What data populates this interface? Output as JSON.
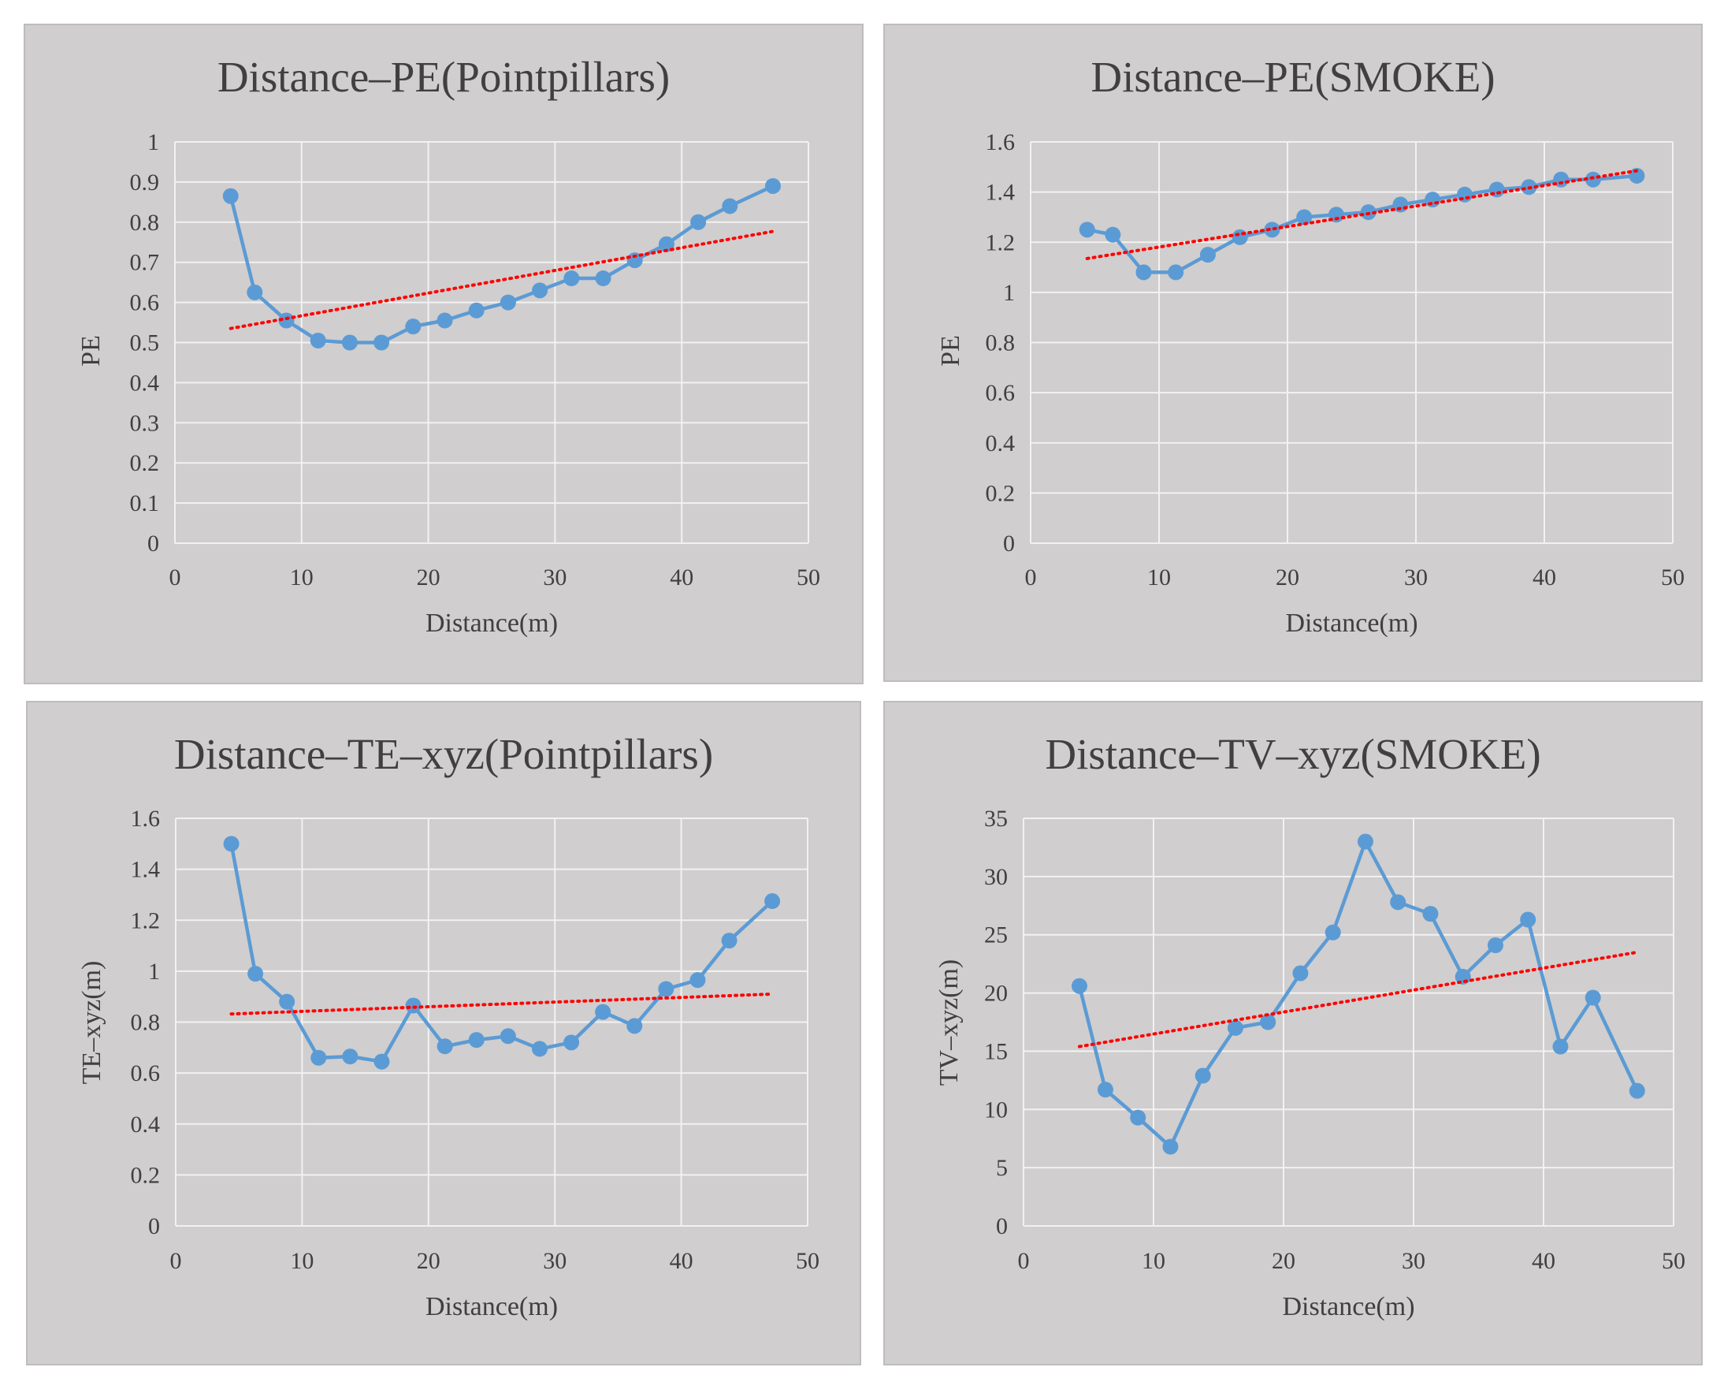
{
  "charts": [
    {
      "id": "p0",
      "type": "line",
      "title": "Distance–PE(Pointpillars)",
      "xlabel": "Distance(m)",
      "ylabel": "PE",
      "xlim": [
        0,
        50
      ],
      "ylim": [
        0,
        1
      ],
      "xticks": [
        0,
        10,
        20,
        30,
        40,
        50
      ],
      "yticks": [
        0,
        0.1,
        0.2,
        0.3,
        0.4,
        0.5,
        0.6,
        0.7,
        0.8,
        0.9,
        1
      ],
      "grid": true,
      "series": [
        {
          "name": "PE",
          "color": "#5b9bd5",
          "x": [
            4.4,
            6.3,
            8.8,
            11.3,
            13.8,
            16.3,
            18.8,
            21.3,
            23.8,
            26.3,
            28.8,
            31.3,
            33.8,
            36.3,
            38.8,
            41.3,
            43.8,
            47.2
          ],
          "y": [
            0.865,
            0.625,
            0.555,
            0.505,
            0.5,
            0.5,
            0.54,
            0.555,
            0.58,
            0.6,
            0.63,
            0.66,
            0.66,
            0.705,
            0.745,
            0.8,
            0.84,
            0.89
          ]
        }
      ],
      "trendline": {
        "color": "#ff0000",
        "x": [
          4.4,
          47.2
        ],
        "y": [
          0.535,
          0.777
        ]
      }
    },
    {
      "id": "p1",
      "type": "line",
      "title": "Distance–PE(SMOKE)",
      "xlabel": "Distance(m)",
      "ylabel": "PE",
      "xlim": [
        0,
        50
      ],
      "ylim": [
        0,
        1.6
      ],
      "xticks": [
        0,
        10,
        20,
        30,
        40,
        50
      ],
      "yticks": [
        0,
        0.2,
        0.4,
        0.6,
        0.8,
        1,
        1.2,
        1.4,
        1.6
      ],
      "grid": true,
      "series": [
        {
          "name": "PE",
          "color": "#5b9bd5",
          "x": [
            4.4,
            6.4,
            8.8,
            11.3,
            13.8,
            16.3,
            18.8,
            21.3,
            23.8,
            26.3,
            28.8,
            31.3,
            33.8,
            36.3,
            38.8,
            41.3,
            43.8,
            47.2
          ],
          "y": [
            1.25,
            1.23,
            1.08,
            1.08,
            1.15,
            1.22,
            1.25,
            1.3,
            1.31,
            1.32,
            1.35,
            1.37,
            1.39,
            1.41,
            1.42,
            1.45,
            1.45,
            1.465
          ]
        }
      ],
      "trendline": {
        "color": "#ff0000",
        "x": [
          4.4,
          47.2
        ],
        "y": [
          1.135,
          1.485
        ]
      }
    },
    {
      "id": "p2",
      "type": "line",
      "title": "Distance–TE–xyz(Pointpillars)",
      "xlabel": "Distance(m)",
      "ylabel": "TE–xyz(m)",
      "xlim": [
        0,
        50
      ],
      "ylim": [
        0,
        1.6
      ],
      "xticks": [
        0,
        10,
        20,
        30,
        40,
        50
      ],
      "yticks": [
        0,
        0.2,
        0.4,
        0.6,
        0.8,
        1,
        1.2,
        1.4,
        1.6
      ],
      "grid": true,
      "series": [
        {
          "name": "TE-xyz",
          "color": "#5b9bd5",
          "x": [
            4.4,
            6.3,
            8.8,
            11.3,
            13.8,
            16.3,
            18.8,
            21.3,
            23.8,
            26.3,
            28.8,
            31.3,
            33.8,
            36.3,
            38.8,
            41.3,
            43.8,
            47.2
          ],
          "y": [
            1.5,
            0.99,
            0.88,
            0.66,
            0.665,
            0.645,
            0.865,
            0.705,
            0.73,
            0.745,
            0.695,
            0.72,
            0.84,
            0.785,
            0.93,
            0.965,
            1.12,
            1.275
          ]
        }
      ],
      "trendline": {
        "color": "#ff0000",
        "x": [
          4.4,
          47.2
        ],
        "y": [
          0.832,
          0.91
        ]
      }
    },
    {
      "id": "p3",
      "type": "line",
      "title": "Distance–TV–xyz(SMOKE)",
      "xlabel": "Distance(m)",
      "ylabel": "TV–xyz(m)",
      "xlim": [
        0,
        50
      ],
      "ylim": [
        0,
        35
      ],
      "xticks": [
        0,
        10,
        20,
        30,
        40,
        50
      ],
      "yticks": [
        0,
        5,
        10,
        15,
        20,
        25,
        30,
        35
      ],
      "grid": true,
      "series": [
        {
          "name": "TV-xyz",
          "color": "#5b9bd5",
          "x": [
            4.3,
            6.3,
            8.8,
            11.3,
            13.8,
            16.3,
            18.8,
            21.3,
            23.8,
            26.3,
            28.8,
            31.3,
            33.8,
            36.3,
            38.8,
            41.3,
            43.8,
            47.2
          ],
          "y": [
            20.6,
            11.7,
            9.3,
            6.8,
            12.9,
            17.0,
            17.5,
            21.7,
            25.2,
            33.0,
            27.8,
            26.8,
            21.4,
            24.1,
            26.3,
            15.4,
            19.6,
            11.6
          ]
        }
      ],
      "trendline": {
        "color": "#ff0000",
        "x": [
          4.3,
          47.2
        ],
        "y": [
          15.4,
          23.5
        ]
      }
    }
  ]
}
